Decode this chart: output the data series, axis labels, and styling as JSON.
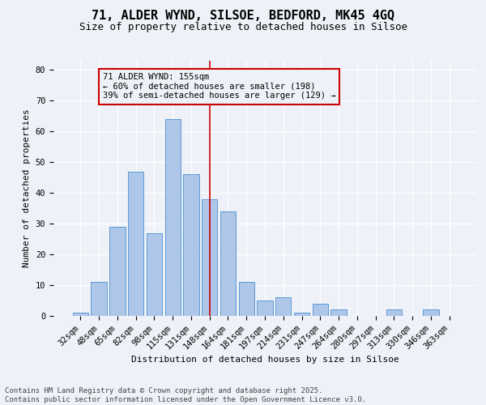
{
  "title": "71, ALDER WYND, SILSOE, BEDFORD, MK45 4GQ",
  "subtitle": "Size of property relative to detached houses in Silsoe",
  "xlabel": "Distribution of detached houses by size in Silsoe",
  "ylabel": "Number of detached properties",
  "footer_line1": "Contains HM Land Registry data © Crown copyright and database right 2025.",
  "footer_line2": "Contains public sector information licensed under the Open Government Licence v3.0.",
  "categories": [
    "32sqm",
    "48sqm",
    "65sqm",
    "82sqm",
    "98sqm",
    "115sqm",
    "131sqm",
    "148sqm",
    "164sqm",
    "181sqm",
    "197sqm",
    "214sqm",
    "231sqm",
    "247sqm",
    "264sqm",
    "280sqm",
    "297sqm",
    "313sqm",
    "330sqm",
    "346sqm",
    "363sqm"
  ],
  "values": [
    1,
    11,
    29,
    47,
    27,
    64,
    46,
    38,
    34,
    11,
    5,
    6,
    1,
    4,
    2,
    0,
    0,
    2,
    0,
    2,
    0
  ],
  "bar_color": "#aec6e8",
  "bar_edge_color": "#5b9bd5",
  "vertical_line_x": 7.0,
  "vertical_line_color": "#cc0000",
  "annotation_title": "71 ALDER WYND: 155sqm",
  "annotation_line2": "← 60% of detached houses are smaller (198)",
  "annotation_line3": "39% of semi-detached houses are larger (129) →",
  "annotation_box_color": "#cc0000",
  "ylim": [
    0,
    83
  ],
  "yticks": [
    0,
    10,
    20,
    30,
    40,
    50,
    60,
    70,
    80
  ],
  "bg_color": "#eef2f8",
  "grid_color": "#ffffff",
  "title_fontsize": 11,
  "subtitle_fontsize": 9,
  "axis_label_fontsize": 8,
  "tick_fontsize": 7.5,
  "annotation_fontsize": 7.5,
  "footer_fontsize": 6.5
}
